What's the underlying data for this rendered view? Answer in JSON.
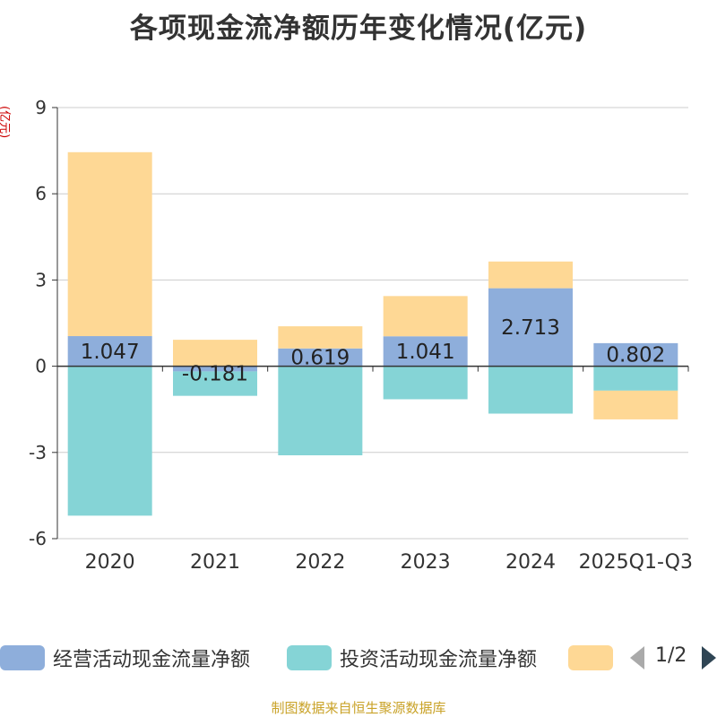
{
  "title": "各项现金流净额历年变化情况(亿元)",
  "unit_label": "(亿元)",
  "colors": {
    "operating": "#8eaedb",
    "investing": "#85d4d6",
    "financing": "#fed895",
    "grid": "#cccccc",
    "axis": "#333333",
    "text": "#333333",
    "footer": "#c9a227"
  },
  "chart_data": {
    "type": "bar",
    "stacked": true,
    "title": "各项现金流净额历年变化情况(亿元)",
    "ylabel": "(亿元)",
    "ylim": [
      -6,
      9
    ],
    "yticks": [
      -6,
      -3,
      0,
      3,
      6,
      9
    ],
    "categories": [
      "2020",
      "2021",
      "2022",
      "2023",
      "2024",
      "2025Q1-Q3"
    ],
    "series": [
      {
        "name": "经营活动现金流量净额",
        "values": [
          1.047,
          -0.181,
          0.619,
          1.041,
          2.713,
          0.802
        ],
        "labels": [
          "1.047",
          "-0.181",
          "0.619",
          "1.041",
          "2.713",
          "0.802"
        ]
      },
      {
        "name": "投资活动现金流量净额",
        "values": [
          -5.2,
          -0.85,
          -3.1,
          -1.15,
          -1.65,
          -0.85
        ]
      },
      {
        "name": "",
        "values": [
          6.4,
          0.92,
          0.77,
          1.4,
          0.93,
          -1.0
        ]
      }
    ],
    "legend_position": "bottom"
  },
  "legend": {
    "items": [
      "经营活动现金流量净额",
      "投资活动现金流量净额",
      ""
    ],
    "page": "1/2"
  },
  "footer": "制图数据来自恒生聚源数据库"
}
